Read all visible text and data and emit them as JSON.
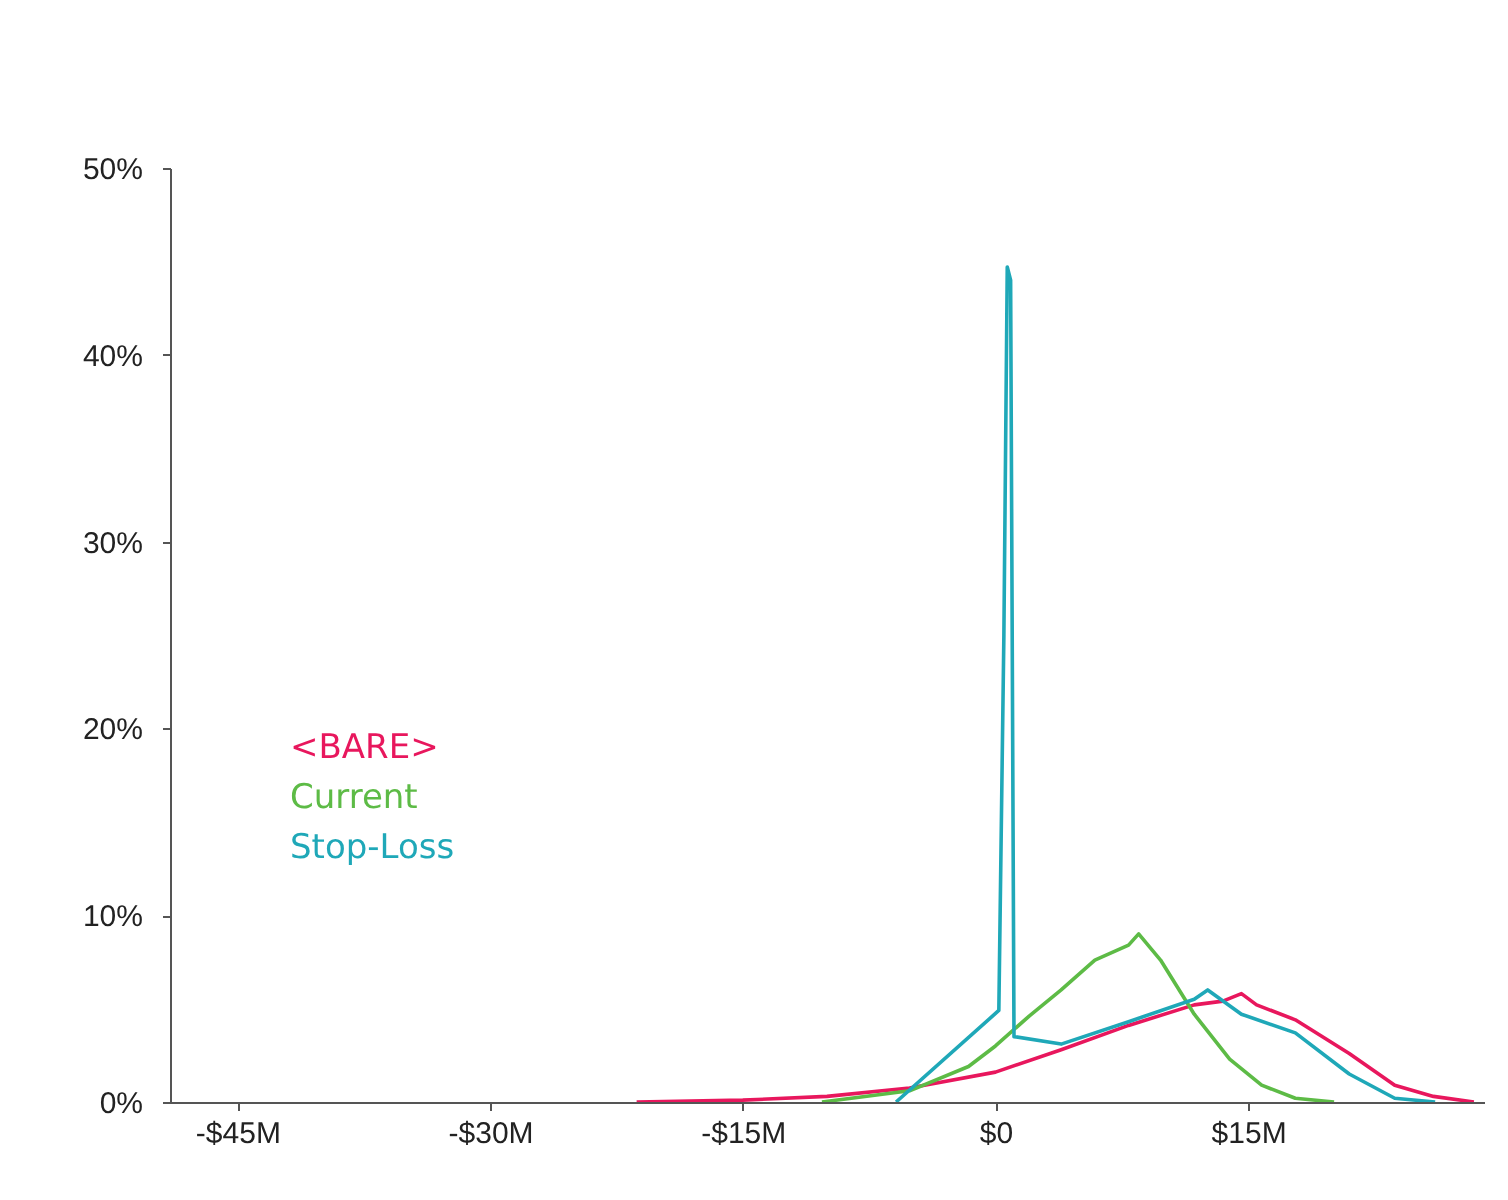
{
  "chart_data": {
    "type": "line",
    "legend": "left",
    "grid": false,
    "xlim": [
      -49,
      29
    ],
    "xticks": [
      {
        "value": -45,
        "label": "-$45M"
      },
      {
        "value": -30,
        "label": "-$30M"
      },
      {
        "value": -15,
        "label": "-$15M"
      },
      {
        "value": 0,
        "label": "$0"
      },
      {
        "value": 15,
        "label": "$15M"
      }
    ],
    "ylim": [
      0,
      50
    ],
    "yticks": [
      {
        "value": 0,
        "label": "0%"
      },
      {
        "value": 10,
        "label": "10%"
      },
      {
        "value": 20,
        "label": "20%"
      },
      {
        "value": 30,
        "label": "30%"
      },
      {
        "value": 40,
        "label": "40%"
      },
      {
        "value": 50,
        "label": "50%"
      }
    ],
    "series": [
      {
        "name": "<BARE>",
        "color": "#e8175d",
        "x": [
          -21.3,
          -15,
          -10,
          -5.1,
          0,
          3.9,
          7.9,
          11.8,
          13.5,
          14.6,
          15.5,
          17.8,
          21,
          23.7,
          26,
          28.4
        ],
        "values": [
          0,
          0.1,
          0.3,
          0.75,
          1.6,
          2.8,
          4.1,
          5.2,
          5.4,
          5.8,
          5.2,
          4.4,
          2.6,
          0.9,
          0.3,
          0
        ]
      },
      {
        "name": "Current",
        "color": "#5dbb46",
        "x": [
          -10.3,
          -5.1,
          -1.6,
          0,
          2,
          3.9,
          5.9,
          7.9,
          8.5,
          9.8,
          11.8,
          13.9,
          15.8,
          17.8,
          20.1
        ],
        "values": [
          0,
          0.6,
          1.9,
          3,
          4.6,
          6,
          7.6,
          8.4,
          9,
          7.6,
          4.7,
          2.3,
          0.9,
          0.2,
          0
        ]
      },
      {
        "name": "Stop-Loss",
        "color": "#1fa8b8",
        "x": [
          -5.9,
          0.2,
          0.5,
          0.7,
          0.9,
          1.1,
          3.9,
          7.9,
          11.8,
          12.6,
          14.6,
          17.8,
          21,
          23.7,
          26.1
        ],
        "values": [
          0,
          4.9,
          25,
          44.7,
          44,
          3.5,
          3.1,
          4.3,
          5.5,
          6,
          4.7,
          3.7,
          1.5,
          0.2,
          0
        ]
      }
    ]
  }
}
